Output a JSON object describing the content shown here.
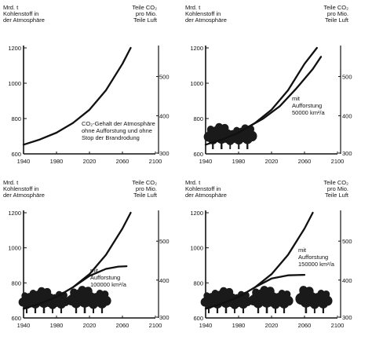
{
  "colors": {
    "ink": "#111111",
    "trees": "#1a1a1a",
    "paper": "#ffffff"
  },
  "chart_data": [
    {
      "type": "line",
      "left_axis_title": [
        "Mrd. t",
        "Kohlenstoff in",
        "der Atmosphäre"
      ],
      "right_axis_title": [
        "Teile CO₂",
        "pro Mio.",
        "Teile Luft"
      ],
      "x_ticks": [
        "1940",
        "1980",
        "2020",
        "2060",
        "2100"
      ],
      "y_ticks": [
        "1200",
        "1000",
        "800",
        "600"
      ],
      "right_ticks": [
        "500",
        "400",
        "300"
      ],
      "xlim": [
        1940,
        2100
      ],
      "ylim": [
        600,
        1200
      ],
      "annotation": [
        "CO₂-Gehalt der Atmosphäre",
        "ohne Aufforstung und ohne",
        "Stop der Brandrodung"
      ],
      "trees": false,
      "series": [
        {
          "x": [
            1940,
            1960,
            1980,
            2000,
            2020,
            2040,
            2060,
            2070
          ],
          "y": [
            652,
            682,
            720,
            775,
            850,
            960,
            1110,
            1200
          ]
        }
      ]
    },
    {
      "type": "line",
      "left_axis_title": [
        "Mrd. t",
        "Kohlenstoff in",
        "der Atmosphäre"
      ],
      "right_axis_title": [
        "Teile CO₂",
        "pro Mio.",
        "Teile Luft"
      ],
      "x_ticks": [
        "1940",
        "1980",
        "2020",
        "2060",
        "2100"
      ],
      "y_ticks": [
        "1200",
        "1000",
        "800",
        "600"
      ],
      "right_ticks": [
        "500",
        "400",
        "300"
      ],
      "xlim": [
        1940,
        2100
      ],
      "ylim": [
        600,
        1200
      ],
      "annotation": [
        "mit",
        "Aufforstung",
        "50000 km²/a"
      ],
      "trees": true,
      "series": [
        {
          "x": [
            1940,
            1960,
            1980,
            2000,
            2020,
            2040,
            2060,
            2075
          ],
          "y": [
            652,
            682,
            720,
            775,
            850,
            960,
            1110,
            1200
          ]
        },
        {
          "x": [
            1990,
            2010,
            2030,
            2050,
            2070,
            2080
          ],
          "y": [
            748,
            800,
            870,
            970,
            1080,
            1150
          ]
        }
      ]
    },
    {
      "type": "line",
      "left_axis_title": [
        "Mrd. t",
        "Kohlenstoff in",
        "der Atmosphäre"
      ],
      "right_axis_title": [
        "Teile CO₂",
        "pro Mio.",
        "Teile Luft"
      ],
      "x_ticks": [
        "1940",
        "1980",
        "2020",
        "2060",
        "2100"
      ],
      "y_ticks": [
        "1200",
        "1000",
        "800",
        "600"
      ],
      "right_ticks": [
        "500",
        "400",
        "300"
      ],
      "xlim": [
        1940,
        2100
      ],
      "ylim": [
        600,
        1200
      ],
      "annotation": [
        "mit",
        "Aufforstung",
        "100000 km²/a"
      ],
      "trees": true,
      "series": [
        {
          "x": [
            1940,
            1960,
            1980,
            2000,
            2020,
            2040,
            2060,
            2070
          ],
          "y": [
            652,
            682,
            720,
            775,
            850,
            960,
            1110,
            1200
          ]
        },
        {
          "x": [
            2000,
            2020,
            2040,
            2055,
            2065
          ],
          "y": [
            775,
            840,
            880,
            893,
            895
          ]
        }
      ]
    },
    {
      "type": "line",
      "left_axis_title": [
        "Mrd. t",
        "Kohlenstoff in",
        "der Atmosphäre"
      ],
      "right_axis_title": [
        "Teile CO₂",
        "pro Mio.",
        "Teile Luft"
      ],
      "x_ticks": [
        "1940",
        "1980",
        "2020",
        "2060",
        "2100"
      ],
      "y_ticks": [
        "1200",
        "1000",
        "800",
        "600"
      ],
      "right_ticks": [
        "500",
        "400",
        "300"
      ],
      "xlim": [
        1940,
        2100
      ],
      "ylim": [
        600,
        1200
      ],
      "annotation": [
        "mit",
        "Aufforstung",
        "150000 km²/a"
      ],
      "trees": true,
      "series": [
        {
          "x": [
            1940,
            1960,
            1980,
            2000,
            2020,
            2040,
            2060,
            2070
          ],
          "y": [
            652,
            682,
            720,
            775,
            850,
            960,
            1110,
            1200
          ]
        },
        {
          "x": [
            2000,
            2020,
            2040,
            2060
          ],
          "y": [
            775,
            825,
            843,
            846
          ]
        }
      ]
    }
  ]
}
